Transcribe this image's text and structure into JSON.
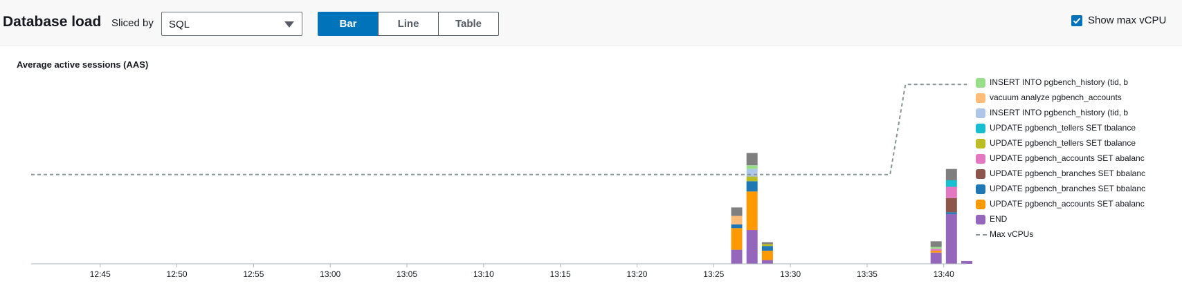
{
  "header": {
    "title": "Database load",
    "sliced_by_label": "Sliced by",
    "sliced_by_value": "SQL",
    "view_buttons": [
      {
        "label": "Bar",
        "active": true
      },
      {
        "label": "Line",
        "active": false
      },
      {
        "label": "Table",
        "active": false
      }
    ],
    "show_max_vcpu": {
      "label": "Show max vCPU",
      "checked": true
    }
  },
  "chart_data": {
    "type": "bar",
    "stacked": true,
    "title": "Average active sessions (AAS)",
    "x_ticks": [
      "12:45",
      "12:50",
      "12:55",
      "13:00",
      "13:05",
      "13:10",
      "13:15",
      "13:20",
      "13:25",
      "13:30",
      "13:35",
      "13:40"
    ],
    "x_tick_minutes": [
      45,
      50,
      55,
      60,
      65,
      70,
      75,
      80,
      85,
      90,
      95,
      100
    ],
    "x_range_minutes": [
      40.5,
      101.5
    ],
    "y_range": [
      0,
      1
    ],
    "grid": false,
    "legend_position": "right",
    "series": [
      {
        "name": "END",
        "color": "#9467bd"
      },
      {
        "name": "UPDATE pgbench_accounts SET abalanc",
        "color": "#ff9900"
      },
      {
        "name": "UPDATE pgbench_branches SET bbalanc",
        "color": "#1f77b4"
      },
      {
        "name": "UPDATE pgbench_branches SET bbalanc",
        "color": "#8c564b"
      },
      {
        "name": "UPDATE pgbench_accounts SET abalanc",
        "color": "#e377c2"
      },
      {
        "name": "UPDATE pgbench_tellers SET tbalance",
        "color": "#bcbd22"
      },
      {
        "name": "UPDATE pgbench_tellers SET tbalance",
        "color": "#17becf"
      },
      {
        "name": "INSERT INTO pgbench_history (tid, b",
        "color": "#aec7e8"
      },
      {
        "name": "vacuum analyze pgbench_accounts",
        "color": "#ffbb78"
      },
      {
        "name": "INSERT INTO pgbench_history (tid, b",
        "color": "#98df8a"
      }
    ],
    "other_color": "#7f7f7f",
    "bars": [
      {
        "minute": 86.5,
        "segments": [
          0.075,
          0.115,
          0.02,
          0,
          0,
          0,
          0,
          0,
          0.045,
          0
        ],
        "other": 0.045
      },
      {
        "minute": 87.5,
        "segments": [
          0.18,
          0.205,
          0.055,
          0,
          0,
          0.025,
          0,
          0.04,
          0,
          0.02
        ],
        "other": 0.065
      },
      {
        "minute": 88.5,
        "segments": [
          0.02,
          0.05,
          0.025,
          0,
          0,
          0.01,
          0,
          0,
          0,
          0
        ],
        "other": 0.01
      },
      {
        "minute": 99.5,
        "segments": [
          0.06,
          0.01,
          0,
          0,
          0.01,
          0,
          0,
          0,
          0,
          0.01
        ],
        "other": 0.03
      },
      {
        "minute": 100.5,
        "segments": [
          0.265,
          0,
          0.01,
          0.075,
          0.06,
          0,
          0.035,
          0,
          0,
          0
        ],
        "other": 0.06
      },
      {
        "minute": 101.5,
        "segments": [
          0.015,
          0,
          0,
          0,
          0,
          0,
          0,
          0,
          0,
          0
        ],
        "other": 0
      }
    ],
    "max_vcpu": {
      "name": "Max vCPUs",
      "color": "#879596",
      "points": [
        [
          40.5,
          0.475
        ],
        [
          96.5,
          0.475
        ],
        [
          97.5,
          0.955
        ],
        [
          101.5,
          0.955
        ]
      ]
    }
  },
  "legend": [
    {
      "label": "INSERT INTO pgbench_history (tid, b",
      "color": "#98df8a",
      "kind": "swatch"
    },
    {
      "label": "vacuum analyze pgbench_accounts",
      "color": "#ffbb78",
      "kind": "swatch"
    },
    {
      "label": "INSERT INTO pgbench_history (tid, b",
      "color": "#aec7e8",
      "kind": "swatch"
    },
    {
      "label": "UPDATE pgbench_tellers SET tbalance",
      "color": "#17becf",
      "kind": "swatch"
    },
    {
      "label": "UPDATE pgbench_tellers SET tbalance",
      "color": "#bcbd22",
      "kind": "swatch"
    },
    {
      "label": "UPDATE pgbench_accounts SET abalanc",
      "color": "#e377c2",
      "kind": "swatch"
    },
    {
      "label": "UPDATE pgbench_branches SET bbalanc",
      "color": "#8c564b",
      "kind": "swatch"
    },
    {
      "label": "UPDATE pgbench_branches SET bbalanc",
      "color": "#1f77b4",
      "kind": "swatch"
    },
    {
      "label": "UPDATE pgbench_accounts SET abalanc",
      "color": "#ff9900",
      "kind": "swatch"
    },
    {
      "label": "END",
      "color": "#9467bd",
      "kind": "swatch"
    },
    {
      "label": "Max vCPUs",
      "color": "#879596",
      "kind": "dash"
    }
  ]
}
